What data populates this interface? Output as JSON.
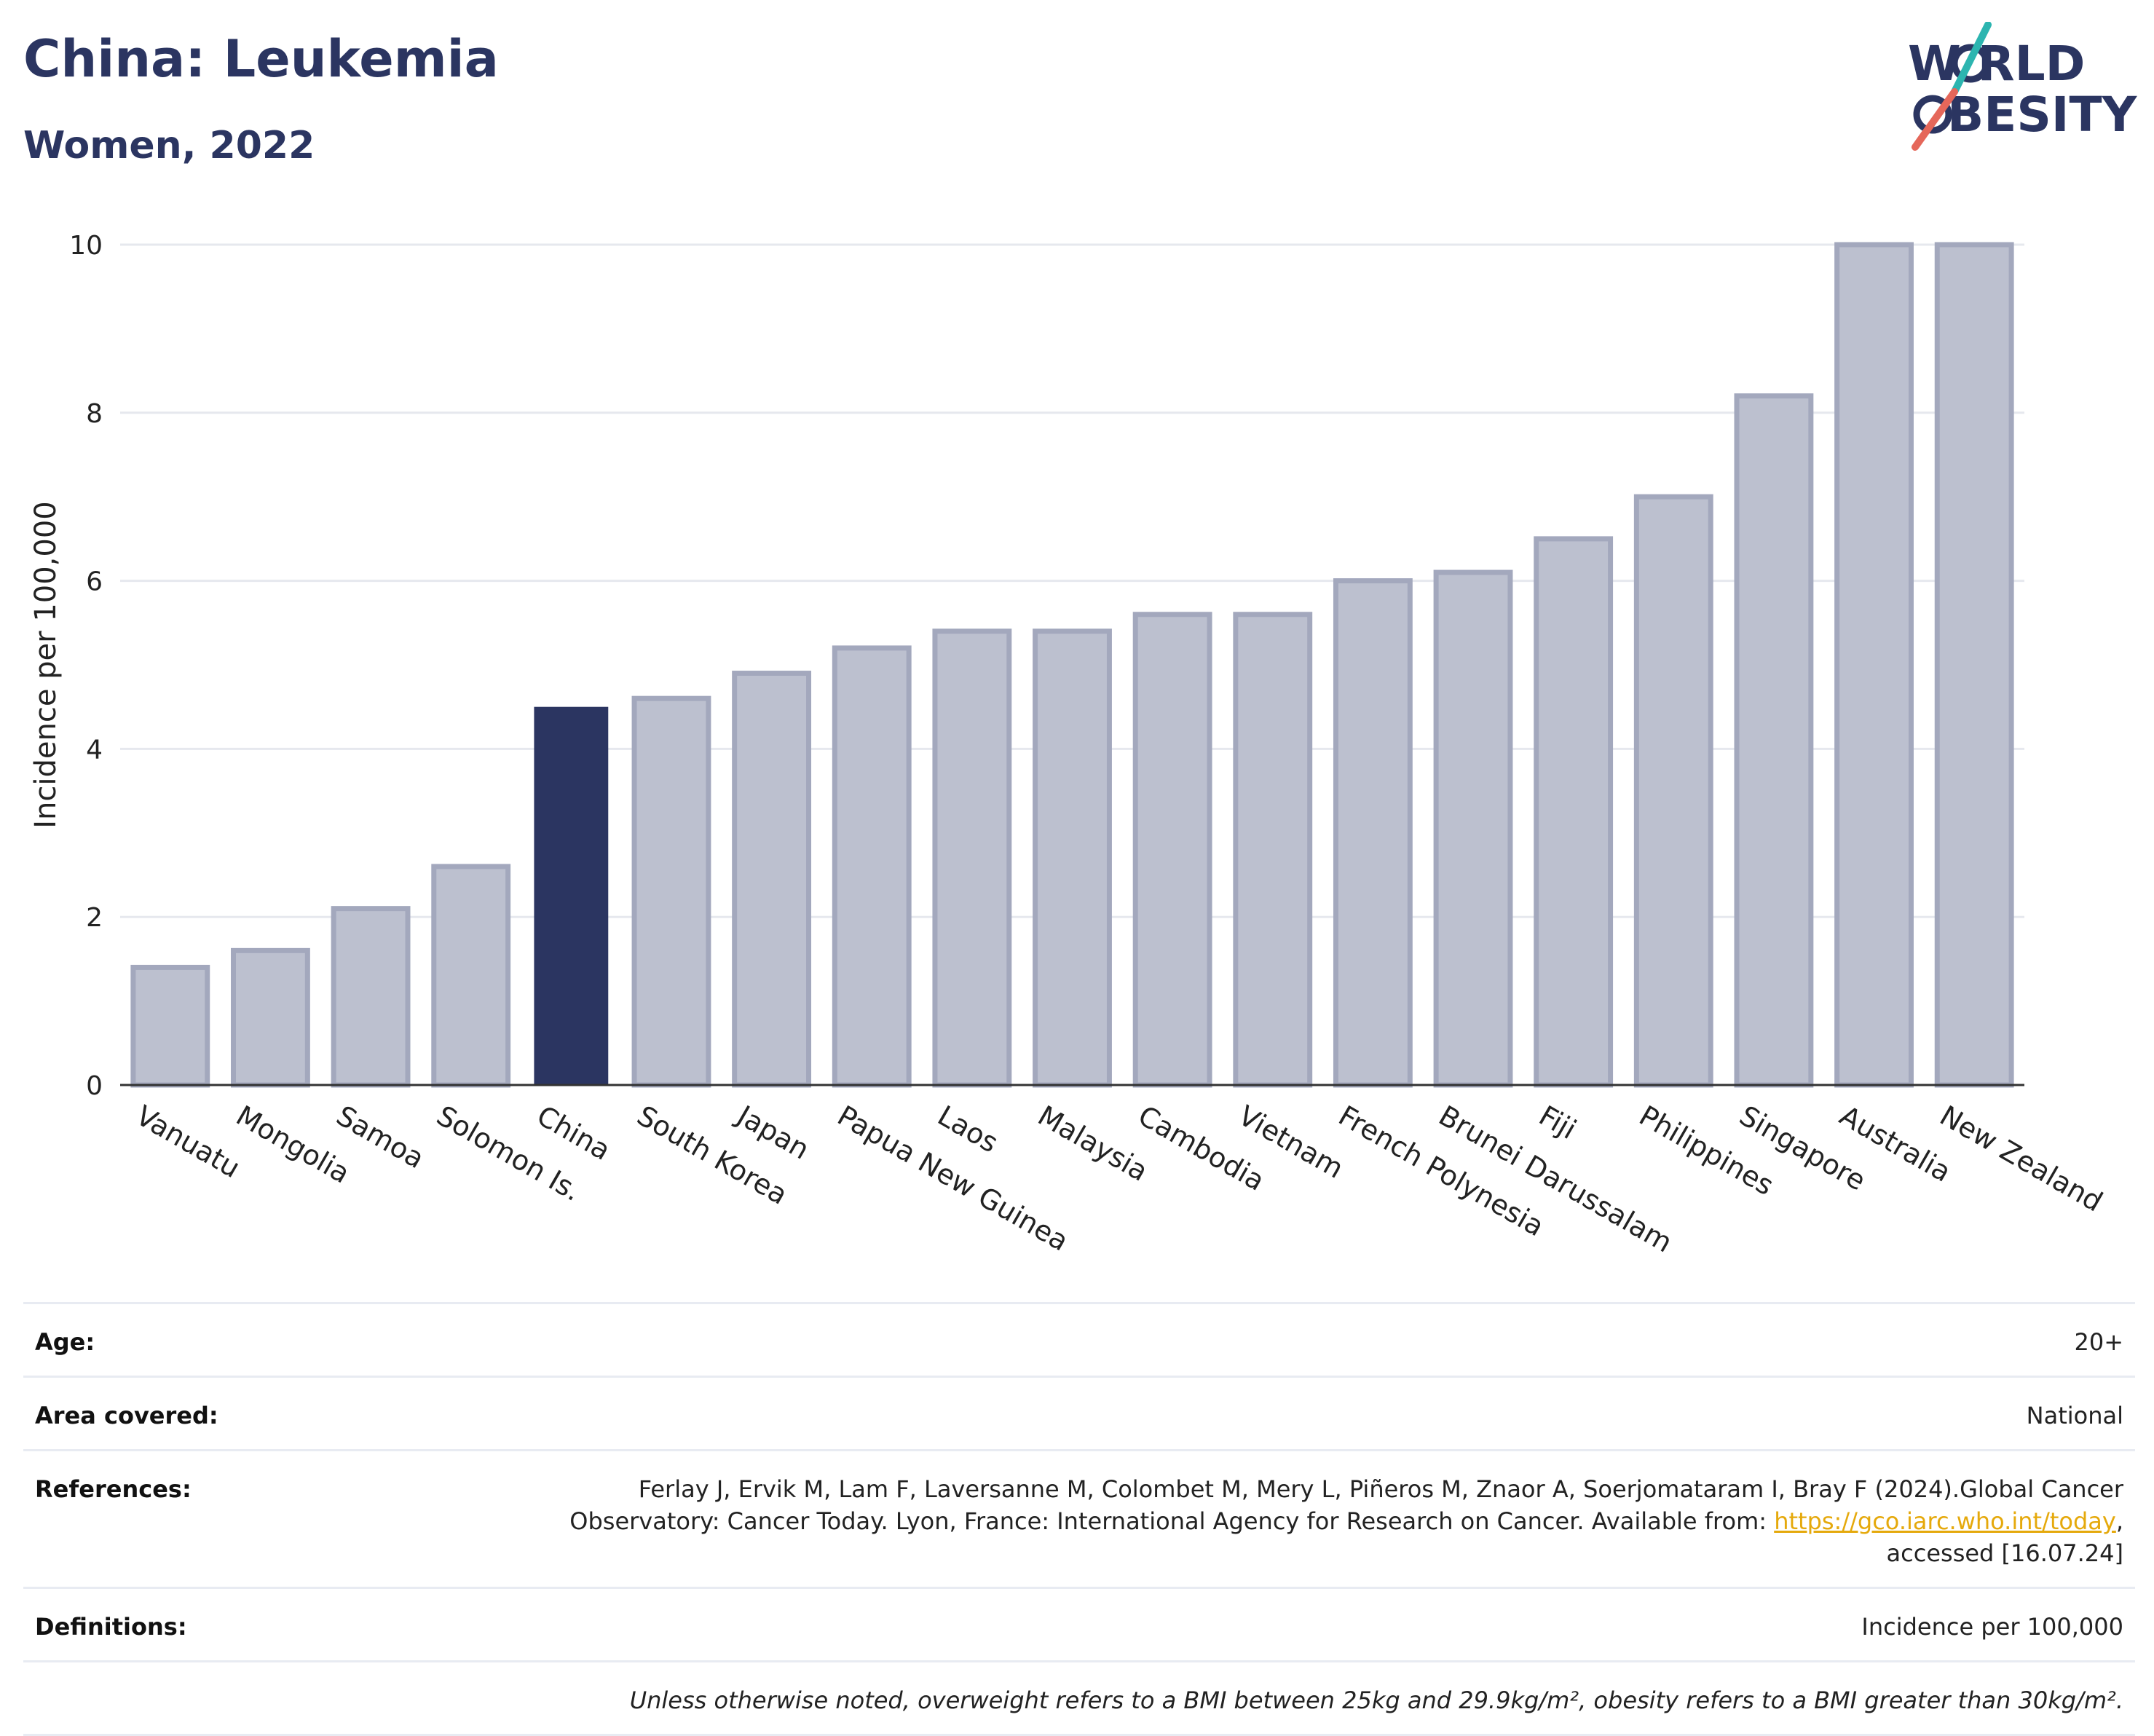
{
  "header": {
    "title": "China: Leukemia",
    "subtitle": "Women, 2022"
  },
  "logo": {
    "line1": "W RLD",
    "line2": "BESITY",
    "text": "WORLD OBESITY",
    "colors": {
      "navy": "#2b3561",
      "teal": "#2cb5b0",
      "coral": "#e5675a"
    }
  },
  "chart_data": {
    "type": "bar",
    "ylabel": "Incidence per 100,000",
    "ylim": [
      0,
      10
    ],
    "yticks": [
      "0",
      "2",
      "4",
      "6",
      "8",
      "10"
    ],
    "grid": true,
    "highlight": "China",
    "colors": {
      "bar": "#bcc0cf",
      "bar_border": "#a3a8bd",
      "highlight": "#2b3561"
    },
    "categories": [
      "Vanuatu",
      "Mongolia",
      "Samoa",
      "Solomon Is.",
      "China",
      "South Korea",
      "Japan",
      "Papua New Guinea",
      "Laos",
      "Malaysia",
      "Cambodia",
      "Vietnam",
      "French Polynesia",
      "Brunei Darussalam",
      "Fiji",
      "Philippines",
      "Singapore",
      "Australia",
      "New Zealand"
    ],
    "values": [
      1.4,
      1.6,
      2.1,
      2.6,
      4.5,
      4.6,
      4.9,
      5.2,
      5.4,
      5.4,
      5.6,
      5.6,
      6.0,
      6.1,
      6.5,
      7.0,
      8.2,
      10.0,
      10.0
    ]
  },
  "meta": {
    "age_label": "Age:",
    "age_value": "20+",
    "area_label": "Area covered:",
    "area_value": "National",
    "references_label": "References:",
    "references_line1": "Ferlay J, Ervik M, Lam F, Laversanne M, Colombet M, Mery L, Piñeros M, Znaor A, Soerjomataram I, Bray F (2024).Global Cancer",
    "references_line2_pre": "Observatory: Cancer Today. Lyon, France: International Agency for Research on Cancer. Available from: ",
    "references_link": "https://gco.iarc.who.int/today",
    "references_line2_post": ",",
    "references_line3": "accessed [16.07.24]",
    "definitions_label": "Definitions:",
    "definitions_value": "Incidence per 100,000",
    "note": "Unless otherwise noted, overweight refers to a BMI between 25kg and 29.9kg/m², obesity refers to a BMI greater than 30kg/m²."
  }
}
